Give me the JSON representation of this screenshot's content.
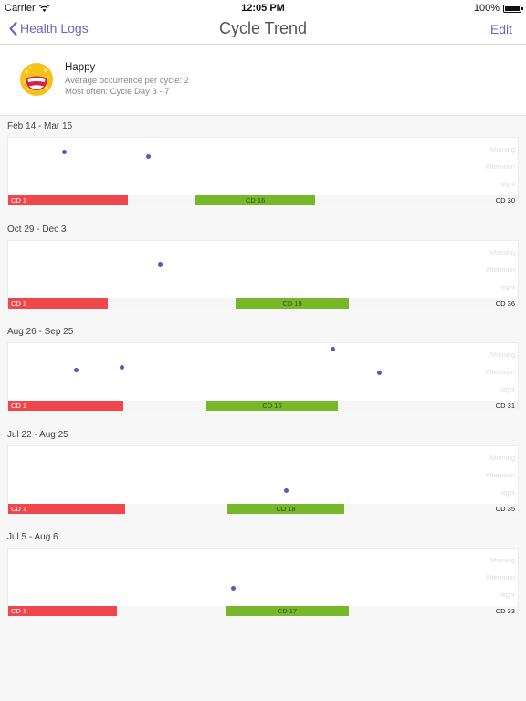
{
  "status_bar": {
    "carrier": "Carrier",
    "time": "12:05 PM",
    "battery": "100%"
  },
  "nav": {
    "back_label": "Health Logs",
    "title": "Cycle Trend",
    "edit_label": "Edit"
  },
  "summary": {
    "mood": "Happy",
    "average": "Average occurrence per cycle: 2",
    "most_often": "Most often: Cycle Day 3 - 7"
  },
  "time_of_day_labels": [
    "Morning",
    "Afternoon",
    "Night"
  ],
  "cycles": [
    {
      "date_range": "Feb 14 - Mar 15",
      "start_label": "CD 1",
      "mid_label": "CD 16",
      "end_label": "CD 30",
      "total_days": 30,
      "period_days": 7,
      "fertile_start": 12,
      "fertile_end": 18,
      "logs": [
        {
          "day": 3.8,
          "slot": 0.2
        },
        {
          "day": 8.7,
          "slot": 0.3
        }
      ]
    },
    {
      "date_range": "Oct 29 - Dec 3",
      "start_label": "CD 1",
      "mid_label": "CD 19",
      "end_label": "CD 36",
      "total_days": 36,
      "period_days": 7,
      "fertile_start": 17,
      "fertile_end": 24,
      "logs": [
        {
          "day": 11.2,
          "slot": 0.4
        }
      ]
    },
    {
      "date_range": "Aug 26 - Sep 25",
      "start_label": "CD 1",
      "mid_label": "CD 16",
      "end_label": "CD 31",
      "total_days": 31,
      "period_days": 7,
      "fertile_start": 13,
      "fertile_end": 20,
      "logs": [
        {
          "day": 4.6,
          "slot": 0.45
        },
        {
          "day": 7.4,
          "slot": 0.4
        },
        {
          "day": 20.2,
          "slot": 0.05
        },
        {
          "day": 23.0,
          "slot": 0.5
        }
      ]
    },
    {
      "date_range": "Jul 22 - Aug 25",
      "start_label": "CD 1",
      "mid_label": "CD 18",
      "end_label": "CD 35",
      "total_days": 35,
      "period_days": 8,
      "fertile_start": 16,
      "fertile_end": 23,
      "logs": [
        {
          "day": 19.5,
          "slot": 0.8
        }
      ]
    },
    {
      "date_range": "Jul 5 - Aug 6",
      "start_label": "CD 1",
      "mid_label": "CD 17",
      "end_label": "CD 33",
      "total_days": 33,
      "period_days": 7,
      "fertile_start": 15,
      "fertile_end": 22,
      "logs": [
        {
          "day": 15.0,
          "slot": 0.7
        }
      ]
    }
  ],
  "colors": {
    "accent": "#6c63c7",
    "period": "#ef474b",
    "fertile": "#76b82a",
    "dot": "#5a57c0"
  }
}
